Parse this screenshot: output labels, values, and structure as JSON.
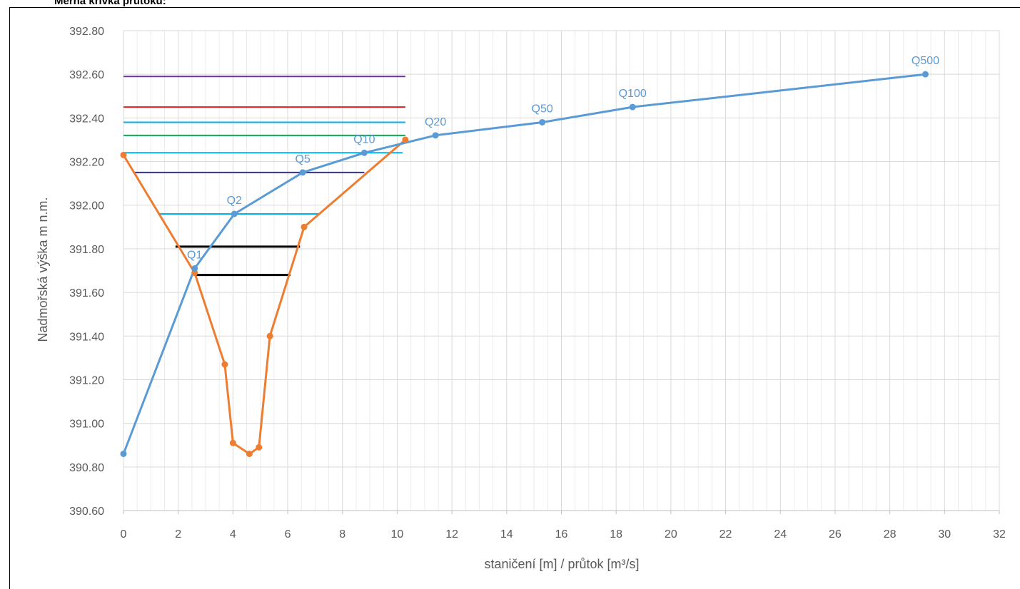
{
  "page_title": "Měrná křivka průtoku:",
  "chart_data": {
    "type": "line",
    "xlabel": "staničení [m] / průtok [m³/s]",
    "ylabel": "Nadmořská výška m n.m.",
    "xlim": [
      0,
      32
    ],
    "ylim": [
      390.6,
      392.8
    ],
    "x_ticks": [
      "0",
      "2",
      "4",
      "6",
      "8",
      "10",
      "12",
      "14",
      "16",
      "18",
      "20",
      "22",
      "24",
      "26",
      "28",
      "30",
      "32"
    ],
    "y_ticks": [
      "390.60",
      "390.80",
      "391.00",
      "391.20",
      "391.40",
      "391.60",
      "391.80",
      "392.00",
      "392.20",
      "392.40",
      "392.60",
      "392.80"
    ],
    "grid": true,
    "legend": "none",
    "series": [
      {
        "color": "#5b9bd5",
        "points": [
          {
            "x": 0,
            "y": 390.86,
            "label": ""
          },
          {
            "x": 2.6,
            "y": 391.71,
            "label": "Q1"
          },
          {
            "x": 4.05,
            "y": 391.96,
            "label": "Q2"
          },
          {
            "x": 6.55,
            "y": 392.15,
            "label": "Q5"
          },
          {
            "x": 8.8,
            "y": 392.24,
            "label": "Q10"
          },
          {
            "x": 11.4,
            "y": 392.32,
            "label": "Q20"
          },
          {
            "x": 15.3,
            "y": 392.38,
            "label": "Q50"
          },
          {
            "x": 18.6,
            "y": 392.45,
            "label": "Q100"
          },
          {
            "x": 29.3,
            "y": 392.6,
            "label": "Q500"
          }
        ]
      },
      {
        "color": "#ed7d31",
        "points": [
          {
            "x": 0,
            "y": 392.23
          },
          {
            "x": 2.6,
            "y": 391.69
          },
          {
            "x": 3.7,
            "y": 391.27
          },
          {
            "x": 4.0,
            "y": 390.91
          },
          {
            "x": 4.6,
            "y": 390.86
          },
          {
            "x": 4.95,
            "y": 390.89
          },
          {
            "x": 5.35,
            "y": 391.4
          },
          {
            "x": 6.6,
            "y": 391.9
          },
          {
            "x": 10.3,
            "y": 392.3
          }
        ]
      }
    ],
    "water_levels": [
      {
        "y": 392.59,
        "x1": 0,
        "x2": 10.3,
        "color": "#7030a0"
      },
      {
        "y": 392.45,
        "x1": 0,
        "x2": 10.3,
        "color": "#e02020"
      },
      {
        "y": 392.38,
        "x1": 0,
        "x2": 10.3,
        "color": "#00b0f0"
      },
      {
        "y": 392.32,
        "x1": 0,
        "x2": 10.3,
        "color": "#00b050"
      },
      {
        "y": 392.24,
        "x1": 0,
        "x2": 10.2,
        "color": "#00b0f0"
      },
      {
        "y": 392.15,
        "x1": 0.35,
        "x2": 8.8,
        "color": "#3030a0"
      },
      {
        "y": 391.96,
        "x1": 1.25,
        "x2": 7.2,
        "color": "#00b0f0"
      },
      {
        "y": 391.81,
        "x1": 1.9,
        "x2": 6.45,
        "color": "#000000",
        "thick": true
      },
      {
        "y": 391.68,
        "x1": 2.6,
        "x2": 6.1,
        "color": "#000000",
        "thick": true
      }
    ]
  }
}
